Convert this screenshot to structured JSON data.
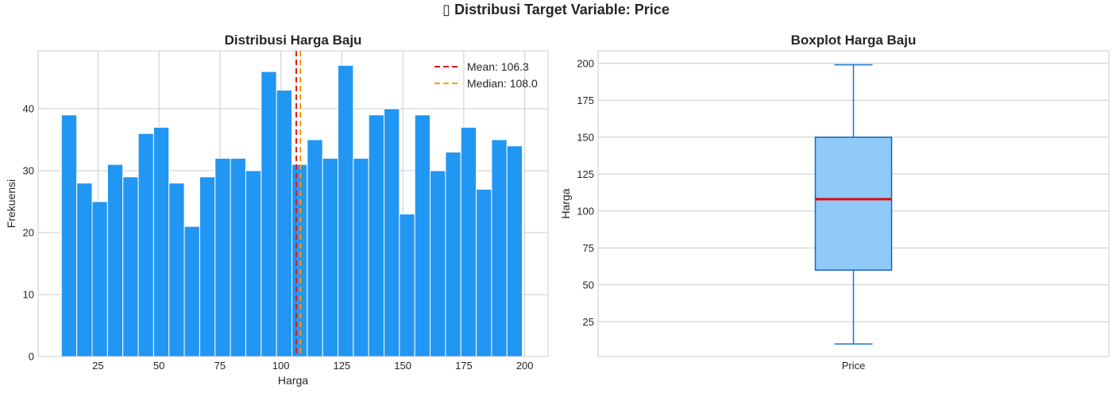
{
  "suptitle": "▯ Distribusi Target Variable: Price",
  "colors": {
    "bar": "#2196F3",
    "bar_edge": "#ffffff",
    "mean_line": "#e41a1c",
    "median_line": "#ff9800",
    "box_fill": "#90CAF9",
    "box_edge": "#1565C0",
    "whisker": "#1976D2",
    "median_box_line": "#e60000",
    "grid": "#cccccc",
    "spine": "#cccccc"
  },
  "chart_data": [
    {
      "type": "bar",
      "title": "Distribusi Harga Baju",
      "xlabel": "Harga",
      "ylabel": "Frekuensi",
      "xlim": [
        0.45,
        209.55
      ],
      "ylim": [
        0,
        49.35
      ],
      "xticks": [
        25,
        50,
        75,
        100,
        125,
        150,
        175,
        200
      ],
      "yticks": [
        0,
        10,
        20,
        30,
        40
      ],
      "bin_start": 10,
      "bin_width": 6.3,
      "values": [
        39,
        28,
        25,
        31,
        29,
        36,
        37,
        28,
        21,
        29,
        32,
        32,
        30,
        46,
        43,
        31,
        35,
        32,
        47,
        32,
        39,
        40,
        23,
        39,
        30,
        33,
        37,
        27,
        35,
        34
      ],
      "lines": [
        {
          "label": "Mean: 106.3",
          "x": 106.3,
          "color_key": "mean_line"
        },
        {
          "label": "Median: 108.0",
          "x": 108.0,
          "color_key": "median_line"
        }
      ],
      "legend_loc": "upper right",
      "grid": true
    },
    {
      "type": "box",
      "title": "Boxplot Harga Baju",
      "xlabel": "",
      "ylabel": "Harga",
      "category": "Price",
      "ylim": [
        1.5,
        208.5
      ],
      "yticks": [
        25,
        50,
        75,
        100,
        125,
        150,
        175,
        200
      ],
      "min": 10,
      "q1": 60,
      "median": 108,
      "q3": 150,
      "max": 199,
      "grid": true
    }
  ]
}
